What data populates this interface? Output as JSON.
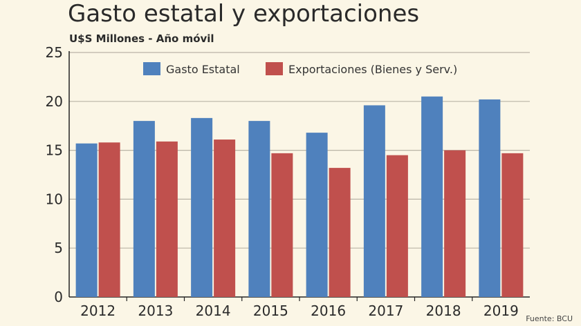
{
  "chart_data": {
    "type": "bar",
    "title": "Gasto estatal y exportaciones",
    "subtitle": "U$S Millones - Año móvil",
    "source": "Fuente: BCU",
    "categories": [
      "2012",
      "2013",
      "2014",
      "2015",
      "2016",
      "2017",
      "2018",
      "2019"
    ],
    "series": [
      {
        "name": "Gasto Estatal",
        "color": "#4f81bd",
        "values": [
          15.7,
          18.0,
          18.3,
          18.0,
          16.8,
          19.6,
          20.5,
          20.2
        ]
      },
      {
        "name": "Exportaciones (Bienes y Serv.)",
        "color": "#c0504d",
        "values": [
          15.8,
          15.9,
          16.1,
          14.7,
          13.2,
          14.5,
          15.0,
          14.7
        ]
      }
    ],
    "ylim": [
      0,
      25
    ],
    "yticks": [
      0,
      5,
      10,
      15,
      20,
      25
    ],
    "grid": true,
    "legend": "top"
  }
}
